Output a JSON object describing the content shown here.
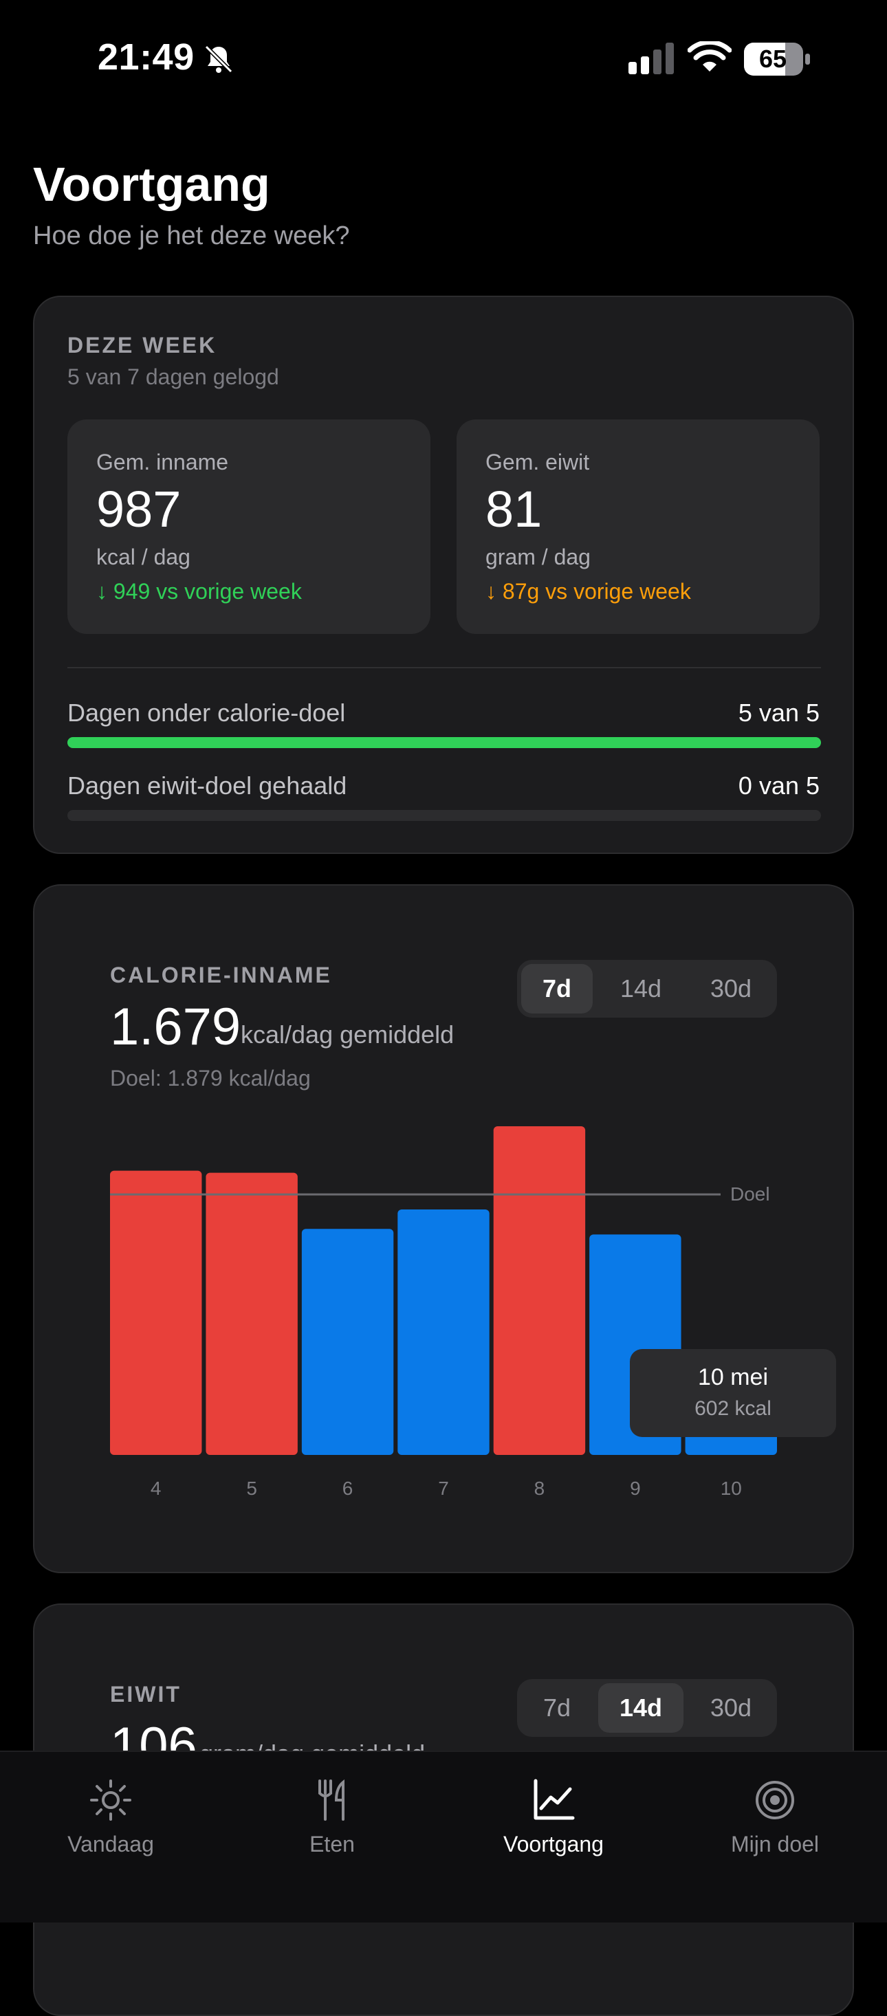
{
  "status_bar": {
    "time": "21:49",
    "battery": "65"
  },
  "header": {
    "title": "Voortgang",
    "subtitle": "Hoe doe je het deze week?"
  },
  "week": {
    "label": "DEZE WEEK",
    "sub": "5 van 7 dagen gelogd",
    "intake": {
      "label": "Gem. inname",
      "value": "987",
      "unit": "kcal / dag",
      "delta": "↓ 949 vs vorige week",
      "color": "#30d158"
    },
    "protein": {
      "label": "Gem. eiwit",
      "value": "81",
      "unit": "gram / dag",
      "delta": "↓ 87g vs vorige week",
      "color": "#ff9f0a"
    },
    "calorie_goal": {
      "label": "Dagen onder calorie-doel",
      "value": "5 van 5",
      "fraction": 1.0
    },
    "protein_goal": {
      "label": "Dagen eiwit-doel gehaald",
      "value": "0 van 5",
      "fraction": 0.0
    }
  },
  "calories": {
    "label": "CALORIE-INNAME",
    "value": "1.679",
    "unit": "kcal/dag gemiddeld",
    "goal_text": "Doel: 1.879 kcal/dag",
    "ranges": [
      "7d",
      "14d",
      "30d"
    ],
    "active_range": "7d",
    "tooltip": {
      "date": "10 mei",
      "value": "602 kcal"
    }
  },
  "protein_card": {
    "label": "EIWIT",
    "value": "106",
    "unit": "gram/dag gemiddeld",
    "ranges": [
      "7d",
      "14d",
      "30d"
    ],
    "active_range": "14d"
  },
  "chart_data": {
    "type": "bar",
    "categories": [
      "4",
      "5",
      "6",
      "7",
      "8",
      "9",
      "10"
    ],
    "values": [
      2050,
      2035,
      1630,
      1770,
      2370,
      1590,
      602
    ],
    "goal": 1879,
    "goal_label": "Doel",
    "over_color": "#e8403a",
    "under_color": "#0a7ae8",
    "ylim": [
      0,
      2400
    ]
  },
  "tabs": [
    {
      "label": "Vandaag",
      "icon": "sun-icon"
    },
    {
      "label": "Eten",
      "icon": "fork-knife-icon"
    },
    {
      "label": "Voortgang",
      "icon": "chart-icon"
    },
    {
      "label": "Mijn doel",
      "icon": "target-icon"
    }
  ],
  "active_tab": "Voortgang"
}
